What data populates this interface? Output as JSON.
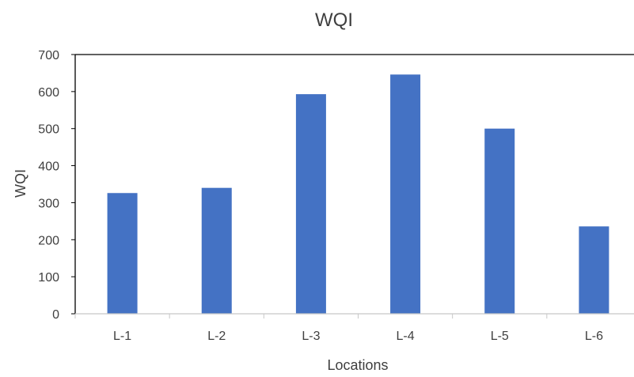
{
  "chart_data": {
    "type": "bar",
    "title": "WQI",
    "xlabel": "Locations",
    "ylabel": "WQI",
    "categories": [
      "L-1",
      "L-2",
      "L-3",
      "L-4",
      "L-5",
      "L-6"
    ],
    "values": [
      326,
      340,
      593,
      646,
      500,
      236
    ],
    "ylim": [
      0,
      700
    ],
    "yticks": [
      "0",
      "100",
      "200",
      "300",
      "400",
      "500",
      "600",
      "700"
    ],
    "grid": false,
    "legend": "none",
    "bar_color": "#4472C4",
    "axis_color": "#000000"
  }
}
